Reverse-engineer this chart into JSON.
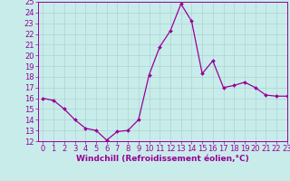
{
  "x": [
    0,
    1,
    2,
    3,
    4,
    5,
    6,
    7,
    8,
    9,
    10,
    11,
    12,
    13,
    14,
    15,
    16,
    17,
    18,
    19,
    20,
    21,
    22,
    23
  ],
  "y": [
    16,
    15.8,
    15,
    14,
    13.2,
    13,
    12.1,
    12.9,
    13,
    14,
    18.2,
    20.8,
    22.3,
    24.8,
    23.2,
    18.3,
    19.5,
    17,
    17.2,
    17.5,
    17,
    16.3,
    16.2,
    16.2
  ],
  "line_color": "#990099",
  "marker_color": "#990099",
  "bg_color": "#c8ecea",
  "grid_color": "#b0d8d8",
  "xlabel": "Windchill (Refroidissement éolien,°C)",
  "ylim": [
    12,
    25
  ],
  "xlim": [
    -0.5,
    23
  ],
  "yticks": [
    12,
    13,
    14,
    15,
    16,
    17,
    18,
    19,
    20,
    21,
    22,
    23,
    24,
    25
  ],
  "xticks": [
    0,
    1,
    2,
    3,
    4,
    5,
    6,
    7,
    8,
    9,
    10,
    11,
    12,
    13,
    14,
    15,
    16,
    17,
    18,
    19,
    20,
    21,
    22,
    23
  ],
  "xlabel_fontsize": 6.5,
  "tick_fontsize": 6,
  "marker_size": 2,
  "line_width": 0.9
}
